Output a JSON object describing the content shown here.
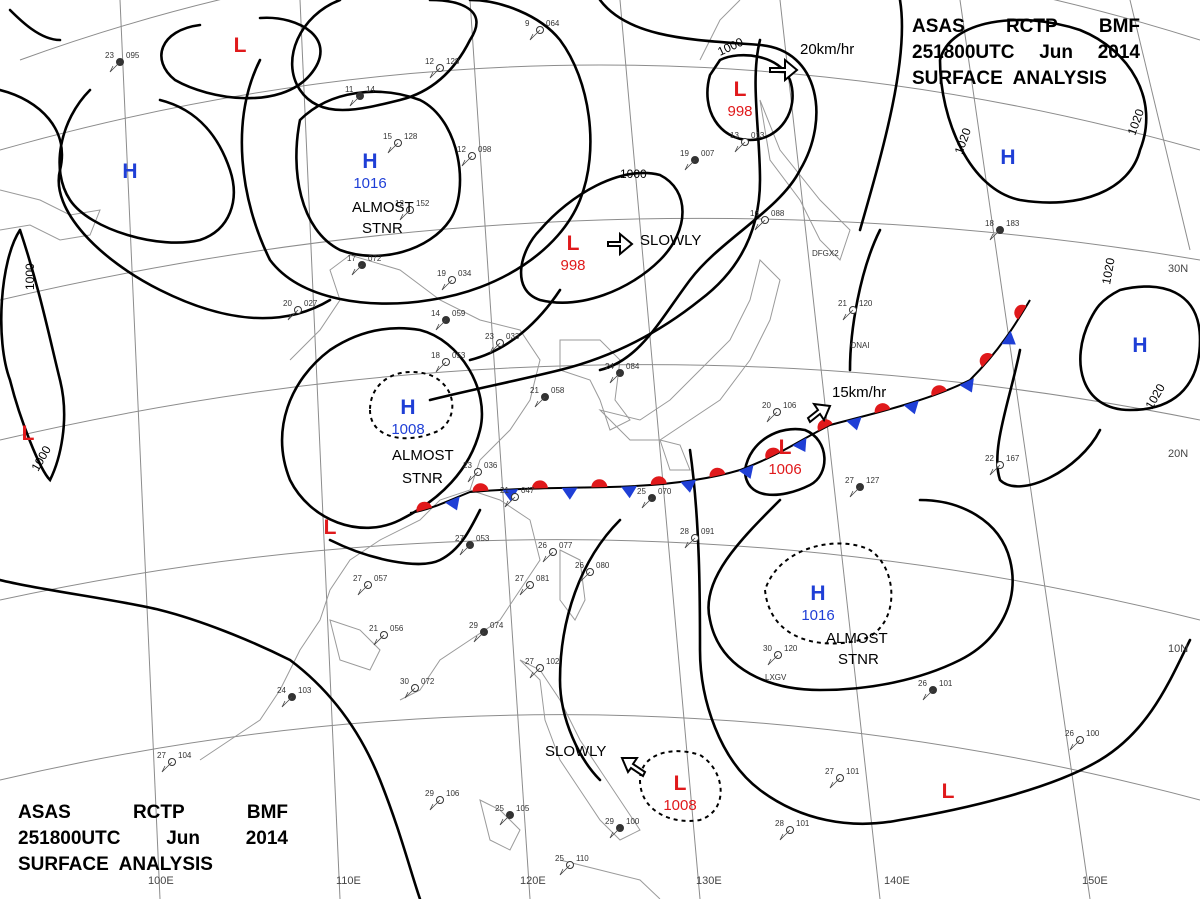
{
  "header": {
    "line1": [
      "ASAS",
      "RCTP",
      "BMF"
    ],
    "line2": [
      "251800UTC",
      "Jun",
      "2014"
    ],
    "line3": "SURFACE  ANALYSIS"
  },
  "colors": {
    "high": "#1f3fd6",
    "low": "#e0191b",
    "isobar": "#000000",
    "grid": "#8c8c8c"
  },
  "grid_labels": {
    "lon": [
      "100E",
      "110E",
      "120E",
      "130E",
      "140E",
      "150E"
    ],
    "lat": [
      "30N",
      "20N",
      "10N"
    ]
  },
  "centers": [
    {
      "kind": "L",
      "id": "low-nw"
    },
    {
      "kind": "H",
      "id": "high-mongolia",
      "value": "1016",
      "note": [
        "ALMOST",
        "STNR"
      ]
    },
    {
      "kind": "H",
      "id": "high-west"
    },
    {
      "kind": "L",
      "id": "low-north",
      "value": "998"
    },
    {
      "kind": "L",
      "id": "low-yellowsea",
      "value": "998",
      "motion": "SLOWLY"
    },
    {
      "kind": "H",
      "id": "high-pacific-n"
    },
    {
      "kind": "H",
      "id": "high-east"
    },
    {
      "kind": "H",
      "id": "high-china",
      "value": "1008",
      "note": [
        "ALMOST",
        "STNR"
      ]
    },
    {
      "kind": "L",
      "id": "low-west-edge"
    },
    {
      "kind": "L",
      "id": "low-southchina"
    },
    {
      "kind": "L",
      "id": "low-japan",
      "value": "1006",
      "motion": "15km/hr"
    },
    {
      "kind": "H",
      "id": "high-pacific-s",
      "value": "1016",
      "note": [
        "ALMOST",
        "STNR"
      ]
    },
    {
      "kind": "L",
      "id": "low-philippines",
      "value": "1008",
      "motion": "SLOWLY"
    },
    {
      "kind": "L",
      "id": "low-southeast"
    }
  ],
  "motions": {
    "north_low": "20km/hr",
    "japan_low": "15km/hr",
    "yellowsea_low": "SLOWLY",
    "philippines_low": "SLOWLY"
  },
  "isobar_labels": [
    "1000",
    "1000",
    "1000",
    "1000",
    "1020",
    "1020",
    "1020",
    "1020"
  ],
  "station_plots": [
    {
      "t": "23",
      "p": "095"
    },
    {
      "t": "9",
      "p": "064"
    },
    {
      "t": "12",
      "p": "128"
    },
    {
      "t": "11",
      "p": "14"
    },
    {
      "t": "15",
      "p": "128"
    },
    {
      "t": "12",
      "p": "098"
    },
    {
      "t": "19",
      "p": "007"
    },
    {
      "t": "13",
      "p": "013"
    },
    {
      "t": "12",
      "p": "152"
    },
    {
      "t": "17",
      "p": "072"
    },
    {
      "t": "19",
      "p": "034"
    },
    {
      "t": "20",
      "p": "027"
    },
    {
      "t": "14",
      "p": "059"
    },
    {
      "t": "23",
      "p": "033"
    },
    {
      "t": "18",
      "p": "053"
    },
    {
      "t": "21",
      "p": "058"
    },
    {
      "t": "23",
      "p": "036"
    },
    {
      "t": "21",
      "p": "047"
    },
    {
      "t": "25",
      "p": "070"
    },
    {
      "t": "28",
      "p": "091"
    },
    {
      "t": "26",
      "p": "077"
    },
    {
      "t": "27",
      "p": "053"
    },
    {
      "t": "27",
      "p": "057"
    },
    {
      "t": "21",
      "p": "056"
    },
    {
      "t": "29",
      "p": "074"
    },
    {
      "t": "27",
      "p": "081"
    },
    {
      "t": "30",
      "p": "072"
    },
    {
      "t": "24",
      "p": "103"
    },
    {
      "t": "27",
      "p": "104"
    },
    {
      "t": "29",
      "p": "106"
    },
    {
      "t": "25",
      "p": "105"
    },
    {
      "t": "25",
      "p": "110"
    },
    {
      "t": "27",
      "p": "102"
    },
    {
      "t": "29",
      "p": "100"
    },
    {
      "t": "28",
      "p": "101"
    },
    {
      "t": "27",
      "p": "101"
    },
    {
      "t": "26",
      "p": "101"
    },
    {
      "t": "26",
      "p": "100"
    },
    {
      "t": "30",
      "p": "120"
    },
    {
      "t": "27",
      "p": "127"
    },
    {
      "t": "21",
      "p": "120"
    },
    {
      "t": "20",
      "p": "106"
    },
    {
      "t": "18",
      "p": "183"
    },
    {
      "t": "22",
      "p": "167"
    },
    {
      "t": "16",
      "p": "088"
    },
    {
      "t": "24",
      "p": "084"
    },
    {
      "t": "26",
      "p": "080"
    }
  ],
  "station_ids": [
    "ONAI",
    "LXGV",
    "DFGX2"
  ]
}
